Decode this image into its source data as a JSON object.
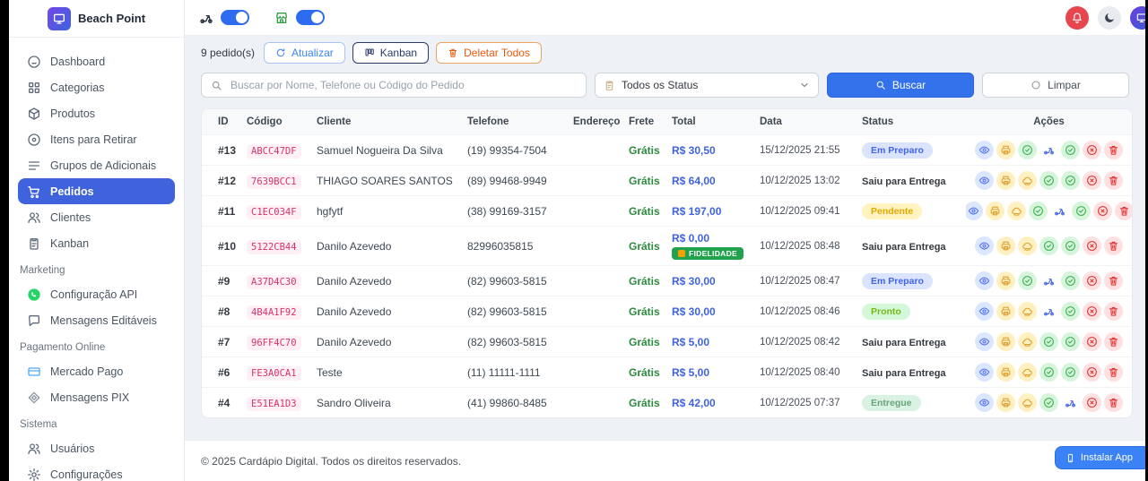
{
  "brand": {
    "name": "Beach Point"
  },
  "topbar": {
    "toggles": [
      {
        "name": "delivery",
        "icon": "moto",
        "color": "#1f2937",
        "on": true
      },
      {
        "name": "store-open",
        "icon": "store",
        "color": "#2f9e44",
        "on": true
      }
    ]
  },
  "sidebar": {
    "sections": [
      {
        "label": "",
        "items": [
          {
            "icon": "dashboard",
            "label": "Dashboard"
          },
          {
            "icon": "grid",
            "label": "Categorias"
          },
          {
            "icon": "box",
            "label": "Produtos"
          },
          {
            "icon": "target",
            "label": "Itens para Retirar"
          },
          {
            "icon": "rows",
            "label": "Grupos de Adicionais"
          },
          {
            "icon": "cart",
            "label": "Pedidos",
            "active": true
          },
          {
            "icon": "users",
            "label": "Clientes"
          },
          {
            "icon": "clipboard",
            "label": "Kanban"
          }
        ]
      },
      {
        "label": "Marketing",
        "items": [
          {
            "icon": "whatsapp",
            "label": "Configuração API",
            "color": "#25d366"
          },
          {
            "icon": "chat",
            "label": "Mensagens Editáveis"
          }
        ]
      },
      {
        "label": "Pagamento Online",
        "items": [
          {
            "icon": "card",
            "label": "Mercado Pago",
            "color": "#4dabf7"
          },
          {
            "icon": "pix",
            "label": "Mensagens PIX",
            "color": "#8d95a0"
          }
        ]
      },
      {
        "label": "Sistema",
        "items": [
          {
            "icon": "users",
            "label": "Usuários"
          },
          {
            "icon": "gear",
            "label": "Configurações"
          }
        ]
      }
    ]
  },
  "toolbar": {
    "count_label": "9 pedido(s)",
    "refresh_label": "Atualizar",
    "kanban_label": "Kanban",
    "delete_all_label": "Deletar Todos"
  },
  "filters": {
    "search_placeholder": "Buscar por Nome, Telefone ou Código do Pedido",
    "status_selected": "Todos os Status",
    "search_button": "Buscar",
    "clear_button": "Limpar"
  },
  "table": {
    "columns": [
      "ID",
      "Código",
      "Cliente",
      "Telefone",
      "Endereço",
      "Frete",
      "Total",
      "Data",
      "Status",
      "Ações"
    ],
    "rows": [
      {
        "id": "#13",
        "code": "ABCC47DF",
        "client": "Samuel Nogueira Da Silva",
        "phone": "(19) 99354-7504",
        "address": "",
        "shipping": "Grátis",
        "total": "R$ 30,50",
        "badge": null,
        "date": "15/12/2025 21:55",
        "status": {
          "label": "Em Preparo",
          "style": "info"
        },
        "actions": [
          "view",
          "print",
          "check",
          "moto",
          "confirm",
          "cancel",
          "delete"
        ]
      },
      {
        "id": "#12",
        "code": "7639BCC1",
        "client": "THIAGO SOARES SANTOS",
        "phone": "(89) 99468-9949",
        "address": "",
        "shipping": "Grátis",
        "total": "R$ 64,00",
        "badge": null,
        "date": "10/12/2025 13:02",
        "status": {
          "label": "Saiu para Entrega",
          "style": "text"
        },
        "actions": [
          "view",
          "print",
          "chef",
          "check",
          "confirm",
          "cancel",
          "delete"
        ]
      },
      {
        "id": "#11",
        "code": "C1EC034F",
        "client": "hgfytf",
        "phone": "(38) 99169-3157",
        "address": "",
        "shipping": "Grátis",
        "total": "R$ 197,00",
        "badge": null,
        "date": "10/12/2025 09:41",
        "status": {
          "label": "Pendente",
          "style": "warn"
        },
        "actions": [
          "view",
          "print",
          "chef",
          "check",
          "moto",
          "confirm",
          "cancel",
          "delete"
        ]
      },
      {
        "id": "#10",
        "code": "5122CB44",
        "client": "Danilo Azevedo",
        "phone": "82996035815",
        "address": "",
        "shipping": "Grátis",
        "total": "R$ 0,00",
        "badge": "FIDELIDADE",
        "date": "10/12/2025 08:48",
        "status": {
          "label": "Saiu para Entrega",
          "style": "text"
        },
        "actions": [
          "view",
          "print",
          "chef",
          "check",
          "confirm",
          "cancel",
          "delete"
        ]
      },
      {
        "id": "#9",
        "code": "A37D4C30",
        "client": "Danilo Azevedo",
        "phone": "(82) 99603-5815",
        "address": "",
        "shipping": "Grátis",
        "total": "R$ 30,00",
        "badge": null,
        "date": "10/12/2025 08:47",
        "status": {
          "label": "Em Preparo",
          "style": "info"
        },
        "actions": [
          "view",
          "print",
          "check",
          "moto",
          "confirm",
          "cancel",
          "delete"
        ]
      },
      {
        "id": "#8",
        "code": "4B4A1F92",
        "client": "Danilo Azevedo",
        "phone": "(82) 99603-5815",
        "address": "",
        "shipping": "Grátis",
        "total": "R$ 30,00",
        "badge": null,
        "date": "10/12/2025 08:46",
        "status": {
          "label": "Pronto",
          "style": "success"
        },
        "actions": [
          "view",
          "print",
          "chef",
          "moto",
          "confirm",
          "cancel",
          "delete"
        ]
      },
      {
        "id": "#7",
        "code": "96FF4C70",
        "client": "Danilo Azevedo",
        "phone": "(82) 99603-5815",
        "address": "",
        "shipping": "Grátis",
        "total": "R$ 5,00",
        "badge": null,
        "date": "10/12/2025 08:42",
        "status": {
          "label": "Saiu para Entrega",
          "style": "text"
        },
        "actions": [
          "view",
          "print",
          "chef",
          "check",
          "confirm",
          "cancel",
          "delete"
        ]
      },
      {
        "id": "#6",
        "code": "FE3A0CA1",
        "client": "Teste",
        "phone": "(11) 11111-1111",
        "address": "",
        "shipping": "Grátis",
        "total": "R$ 5,00",
        "badge": null,
        "date": "10/12/2025 08:40",
        "status": {
          "label": "Saiu para Entrega",
          "style": "text"
        },
        "actions": [
          "view",
          "print",
          "chef",
          "check",
          "confirm",
          "cancel",
          "delete"
        ]
      },
      {
        "id": "#4",
        "code": "E51EA1D3",
        "client": "Sandro Oliveira",
        "phone": "(41) 99860-8485",
        "address": "",
        "shipping": "Grátis",
        "total": "R$ 42,00",
        "badge": null,
        "date": "10/12/2025 07:37",
        "status": {
          "label": "Entregue",
          "style": "soft"
        },
        "actions": [
          "view",
          "print",
          "chef",
          "check",
          "moto",
          "cancel",
          "delete"
        ]
      }
    ]
  },
  "footer": {
    "copyright": "© 2025 Cardápio Digital. Todos os direitos reservados.",
    "install_label": "Instalar App"
  }
}
